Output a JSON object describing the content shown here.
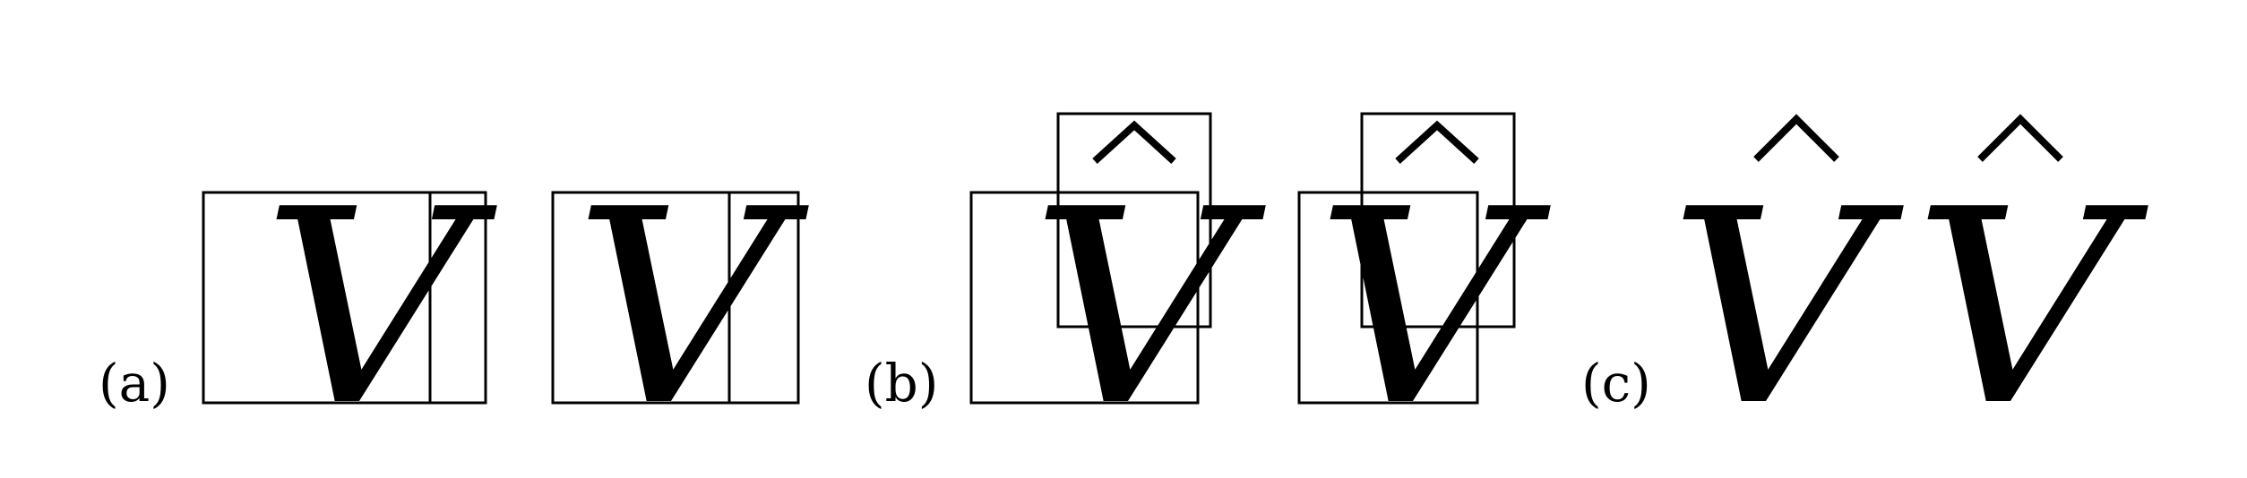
{
  "labels": {
    "a": "(a)",
    "b": "(b)",
    "c": "(c)"
  },
  "letters": {
    "a_left": "V",
    "a_right": "V",
    "b_left": "V",
    "b_right": "V",
    "c_left": "V",
    "c_right": "V"
  },
  "colors": {
    "ink": "#000000",
    "background": "#ffffff"
  }
}
